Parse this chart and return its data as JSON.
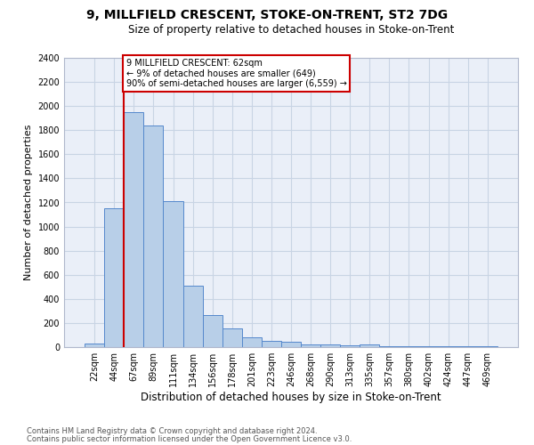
{
  "title": "9, MILLFIELD CRESCENT, STOKE-ON-TRENT, ST2 7DG",
  "subtitle": "Size of property relative to detached houses in Stoke-on-Trent",
  "xlabel": "Distribution of detached houses by size in Stoke-on-Trent",
  "ylabel": "Number of detached properties",
  "footnote1": "Contains HM Land Registry data © Crown copyright and database right 2024.",
  "footnote2": "Contains public sector information licensed under the Open Government Licence v3.0.",
  "bar_values": [
    30,
    1150,
    1950,
    1840,
    1210,
    510,
    265,
    155,
    80,
    50,
    45,
    20,
    25,
    15,
    20,
    5,
    5,
    5,
    5,
    5,
    5
  ],
  "bar_labels": [
    "22sqm",
    "44sqm",
    "67sqm",
    "89sqm",
    "111sqm",
    "134sqm",
    "156sqm",
    "178sqm",
    "201sqm",
    "223sqm",
    "246sqm",
    "268sqm",
    "290sqm",
    "313sqm",
    "335sqm",
    "357sqm",
    "380sqm",
    "402sqm",
    "424sqm",
    "447sqm",
    "469sqm"
  ],
  "bar_color": "#b8cfe8",
  "bar_edge_color": "#5588cc",
  "grid_color": "#c8d4e4",
  "background_color": "#eaeff8",
  "vline_color": "#cc0000",
  "annotation_line1": "9 MILLFIELD CRESCENT: 62sqm",
  "annotation_line2": "← 9% of detached houses are smaller (649)",
  "annotation_line3": "90% of semi-detached houses are larger (6,559) →",
  "annotation_box_color": "#cc0000",
  "ylim": [
    0,
    2400
  ],
  "yticks": [
    0,
    200,
    400,
    600,
    800,
    1000,
    1200,
    1400,
    1600,
    1800,
    2000,
    2200,
    2400
  ],
  "title_fontsize": 10,
  "subtitle_fontsize": 8.5,
  "ylabel_fontsize": 8,
  "xlabel_fontsize": 8.5,
  "tick_fontsize": 7,
  "footnote_fontsize": 6
}
